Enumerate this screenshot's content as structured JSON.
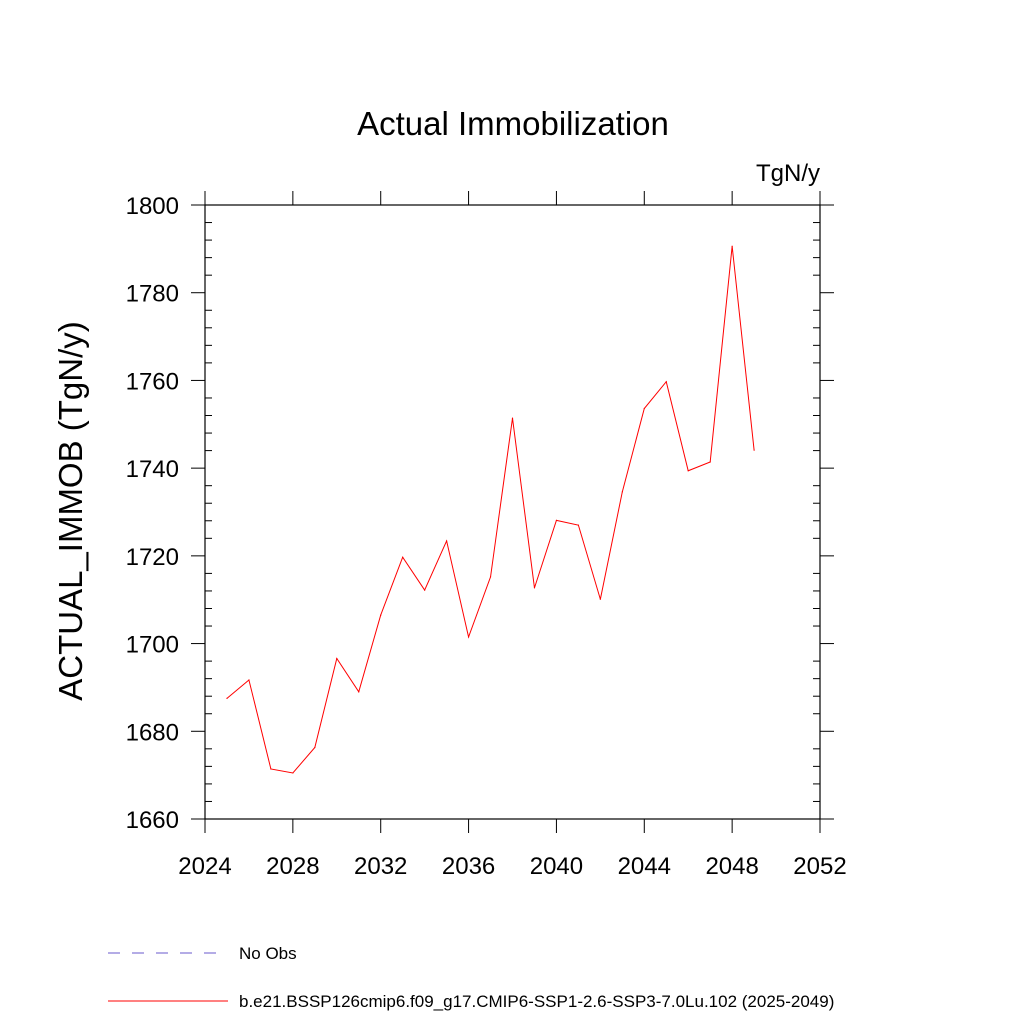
{
  "chart_data": {
    "type": "line",
    "title": "Actual Immobilization",
    "units": "TgN/y",
    "ylabel": "ACTUAL_IMMOB  (TgN/y)",
    "xlabel": "",
    "xlim": [
      2024,
      2052
    ],
    "ylim": [
      1660,
      1800
    ],
    "x_ticks": [
      2024,
      2028,
      2032,
      2036,
      2040,
      2044,
      2048,
      2052
    ],
    "y_ticks": [
      1660,
      1680,
      1700,
      1720,
      1740,
      1760,
      1780,
      1800
    ],
    "grid": false,
    "legend_position": "bottom-left",
    "series": [
      {
        "name": "b.e21.BSSP126cmip6.f09_g17.CMIP6-SSP1-2.6-SSP3-7.0Lu.102 (2025-2049)",
        "color": "#ff0000",
        "style": "solid",
        "x": [
          2025,
          2026,
          2027,
          2028,
          2029,
          2030,
          2031,
          2032,
          2033,
          2034,
          2035,
          2036,
          2037,
          2038,
          2039,
          2040,
          2041,
          2042,
          2043,
          2044,
          2045,
          2046,
          2047,
          2048,
          2049
        ],
        "values": [
          1687.5,
          1691.7,
          1671.4,
          1670.5,
          1676.3,
          1696.6,
          1689.0,
          1706.5,
          1719.7,
          1712.2,
          1723.4,
          1701.5,
          1715.2,
          1751.4,
          1712.7,
          1728.1,
          1727.0,
          1710.1,
          1734.6,
          1753.6,
          1759.7,
          1739.4,
          1741.4,
          1790.6,
          1744.1
        ]
      }
    ],
    "legend": [
      {
        "label": "No Obs",
        "color": "#6a5acd",
        "style": "dashed"
      },
      {
        "label": "b.e21.BSSP126cmip6.f09_g17.CMIP6-SSP1-2.6-SSP3-7.0Lu.102 (2025-2049)",
        "color": "#ff0000",
        "style": "solid"
      }
    ]
  }
}
